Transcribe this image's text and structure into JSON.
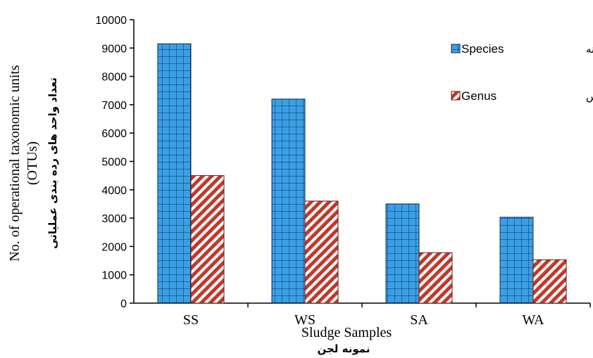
{
  "chart_data": {
    "type": "bar",
    "categories": [
      "SS",
      "WS",
      "SA",
      "WA"
    ],
    "series": [
      {
        "name": "Species",
        "name_fa": "گونه",
        "values": [
          9150,
          7200,
          3500,
          3030
        ],
        "color": "#3aa0e6",
        "pattern": "grid"
      },
      {
        "name": "Genus",
        "name_fa": "جنس",
        "values": [
          4500,
          3600,
          1780,
          1530
        ],
        "color": "#c0392b",
        "pattern": "diagonal-stripes"
      }
    ],
    "ylim": [
      0,
      10000
    ],
    "yticks": [
      "0",
      "1000",
      "2000",
      "3000",
      "4000",
      "5000",
      "6000",
      "7000",
      "8000",
      "9000",
      "10000"
    ],
    "xlabel": "Sludge Samples",
    "xlabel_fa": "نمونه لجن",
    "ylabel": "No. of operational taxonomic units",
    "ylabel_line2": "(OTUs)",
    "ylabel_fa": "تعداد واحد های رده بندی عملیاتی",
    "legend_position": "top-right",
    "grid": false
  }
}
